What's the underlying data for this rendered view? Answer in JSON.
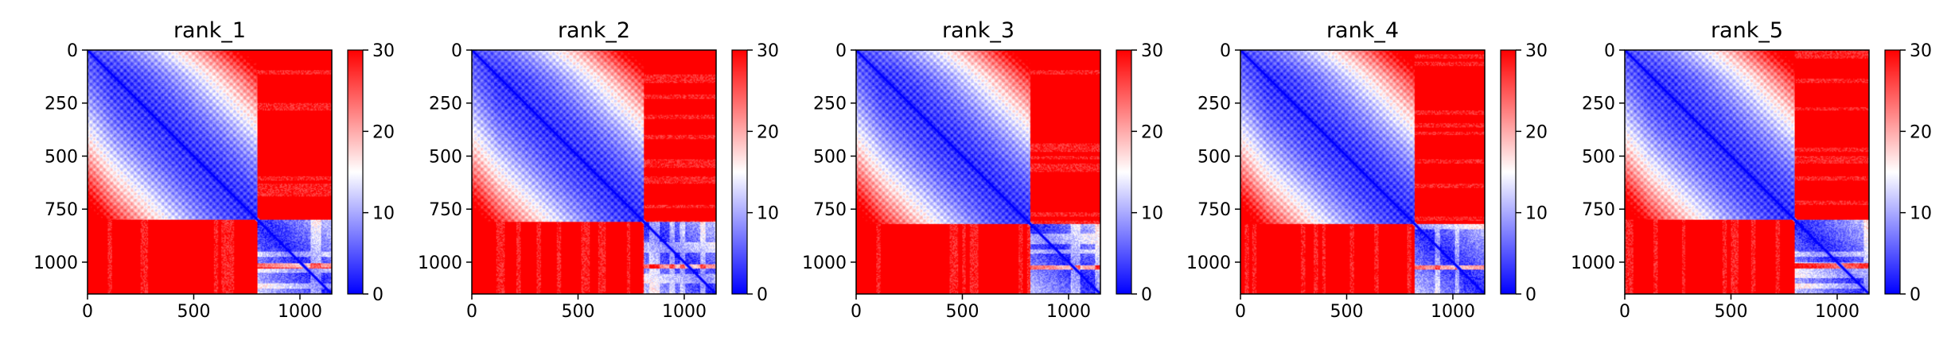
{
  "figure": {
    "colormap": "bwr",
    "colors": {
      "low": "#0000ff",
      "mid": "#ffffff",
      "high": "#ff0000",
      "axis": "#000000"
    }
  },
  "chart_data": [
    {
      "type": "heatmap",
      "title": "rank_1",
      "x_ticks": [
        0,
        500,
        1000
      ],
      "y_ticks": [
        0,
        250,
        500,
        750,
        1000
      ],
      "xlim": [
        0,
        1150
      ],
      "ylim": [
        1150,
        0
      ],
      "y_axis_inverted": true,
      "block_boundary": 800,
      "colorbar": {
        "range": [
          0,
          30
        ],
        "ticks": [
          0,
          10,
          20,
          30
        ]
      },
      "pattern": {
        "diagonal_value": 0,
        "upper_left_block": "low (0-15), rising away from diagonal",
        "lower_right_block": "low (0-10) with striping",
        "off_diagonal_blocks": "high (30)"
      }
    },
    {
      "type": "heatmap",
      "title": "rank_2",
      "x_ticks": [
        0,
        500,
        1000
      ],
      "y_ticks": [
        0,
        250,
        500,
        750,
        1000
      ],
      "xlim": [
        0,
        1150
      ],
      "ylim": [
        1150,
        0
      ],
      "y_axis_inverted": true,
      "block_boundary": 810,
      "colorbar": {
        "range": [
          0,
          30
        ],
        "ticks": [
          0,
          10,
          20,
          30
        ]
      },
      "pattern": {
        "diagonal_value": 0,
        "upper_left_block": "low (0-15), rising away from diagonal",
        "lower_right_block": "low (0-10) with striping",
        "off_diagonal_blocks": "high (30)"
      }
    },
    {
      "type": "heatmap",
      "title": "rank_3",
      "x_ticks": [
        0,
        500,
        1000
      ],
      "y_ticks": [
        0,
        250,
        500,
        750,
        1000
      ],
      "xlim": [
        0,
        1150
      ],
      "ylim": [
        1150,
        0
      ],
      "y_axis_inverted": true,
      "block_boundary": 820,
      "colorbar": {
        "range": [
          0,
          30
        ],
        "ticks": [
          0,
          10,
          20,
          30
        ]
      },
      "pattern": {
        "diagonal_value": 0,
        "upper_left_block": "low (0-15), rising away from diagonal",
        "lower_right_block": "low (0-10) with striping",
        "off_diagonal_blocks": "high (30)"
      }
    },
    {
      "type": "heatmap",
      "title": "rank_4",
      "x_ticks": [
        0,
        500,
        1000
      ],
      "y_ticks": [
        0,
        250,
        500,
        750,
        1000
      ],
      "xlim": [
        0,
        1150
      ],
      "ylim": [
        1150,
        0
      ],
      "y_axis_inverted": true,
      "block_boundary": 820,
      "colorbar": {
        "range": [
          0,
          30
        ],
        "ticks": [
          0,
          10,
          20,
          30
        ]
      },
      "pattern": {
        "diagonal_value": 0,
        "upper_left_block": "low (0-15), rising away from diagonal",
        "lower_right_block": "low (0-10) with striping",
        "off_diagonal_blocks": "high (30)"
      }
    },
    {
      "type": "heatmap",
      "title": "rank_5",
      "x_ticks": [
        0,
        500,
        1000
      ],
      "y_ticks": [
        0,
        250,
        500,
        750,
        1000
      ],
      "xlim": [
        0,
        1150
      ],
      "ylim": [
        1150,
        0
      ],
      "y_axis_inverted": true,
      "block_boundary": 800,
      "colorbar": {
        "range": [
          0,
          30
        ],
        "ticks": [
          0,
          10,
          20,
          30
        ]
      },
      "pattern": {
        "diagonal_value": 0,
        "upper_left_block": "low (0-15), rising away from diagonal",
        "lower_right_block": "low (0-10) with striping",
        "off_diagonal_blocks": "high (30)"
      }
    }
  ]
}
